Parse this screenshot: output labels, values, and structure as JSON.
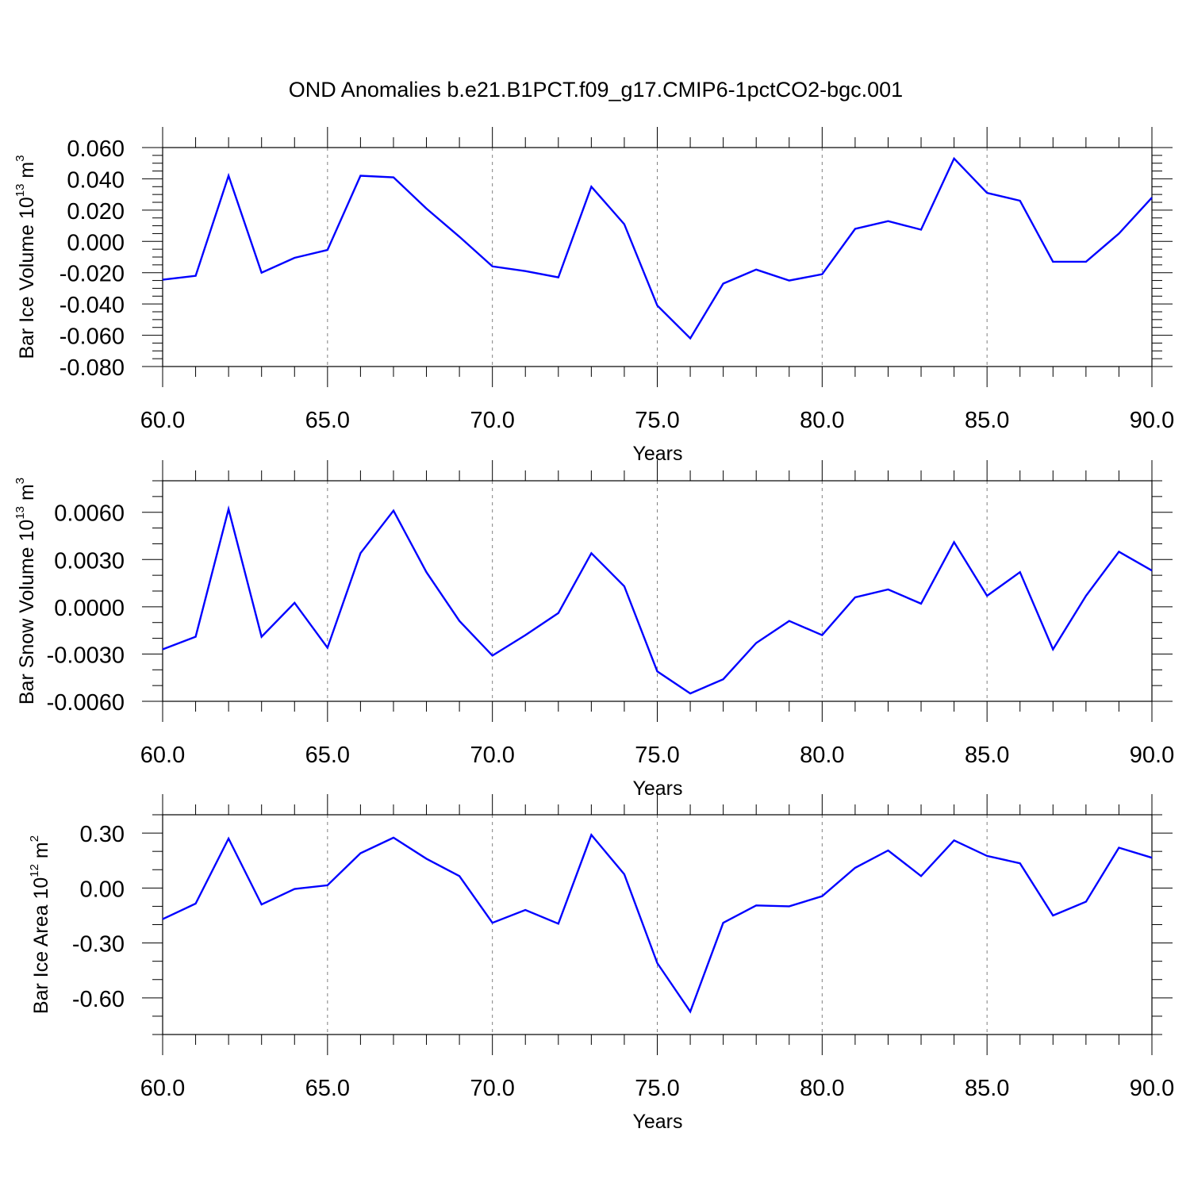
{
  "title": "OND Anomalies b.e21.B1PCT.f09_g17.CMIP6-1pctCO2-bgc.001",
  "colors": {
    "line": "#0000ff",
    "axis": "#000000",
    "grid": "#808080"
  },
  "panels": [
    {
      "ylabel_main": "Bar Ice Volume 10",
      "ylabel_exp": "13",
      "ylabel_unit": " m",
      "ylabel_unit_exp": "3",
      "xlabel": "Years",
      "xticks": [
        "60.0",
        "65.0",
        "70.0",
        "75.0",
        "80.0",
        "85.0",
        "90.0"
      ],
      "yticks": [
        "0.060",
        "0.040",
        "0.020",
        "0.000",
        "-0.020",
        "-0.040",
        "-0.060",
        "-0.080"
      ]
    },
    {
      "ylabel_main": "Bar Snow Volume 10",
      "ylabel_exp": "13",
      "ylabel_unit": " m",
      "ylabel_unit_exp": "3",
      "xlabel": "Years",
      "xticks": [
        "60.0",
        "65.0",
        "70.0",
        "75.0",
        "80.0",
        "85.0",
        "90.0"
      ],
      "yticks": [
        "0.0060",
        "0.0030",
        "0.0000",
        "-0.0030",
        "-0.0060"
      ]
    },
    {
      "ylabel_main": "Bar Ice Area 10",
      "ylabel_exp": "12",
      "ylabel_unit": " m",
      "ylabel_unit_exp": "2",
      "xlabel": "Years",
      "xticks": [
        "60.0",
        "65.0",
        "70.0",
        "75.0",
        "80.0",
        "85.0",
        "90.0"
      ],
      "yticks": [
        "0.30",
        "0.00",
        "-0.30",
        "-0.60"
      ]
    }
  ],
  "chart_data": [
    {
      "type": "line",
      "title": "OND Anomalies b.e21.B1PCT.f09_g17.CMIP6-1pctCO2-bgc.001",
      "xlabel": "Years",
      "ylabel": "Bar Ice Volume 10^13 m^3",
      "xlim": [
        60,
        90
      ],
      "ylim": [
        -0.08,
        0.06
      ],
      "grid": "vertical dashed at major x ticks",
      "x": [
        60,
        61,
        62,
        63,
        64,
        65,
        66,
        67,
        68,
        69,
        70,
        71,
        72,
        73,
        74,
        75,
        76,
        77,
        78,
        79,
        80,
        81,
        82,
        83,
        84,
        85,
        86,
        87,
        88,
        89,
        90
      ],
      "series": [
        {
          "values": [
            -0.0245,
            -0.022,
            0.042,
            -0.02,
            -0.0105,
            -0.0055,
            0.042,
            0.041,
            0.021,
            0.003,
            -0.016,
            -0.019,
            -0.023,
            0.035,
            0.011,
            -0.041,
            -0.062,
            -0.027,
            -0.018,
            -0.025,
            -0.021,
            0.008,
            0.013,
            0.0075,
            0.053,
            0.031,
            0.026,
            -0.013,
            -0.013,
            0.005,
            0.028
          ]
        }
      ]
    },
    {
      "type": "line",
      "xlabel": "Years",
      "ylabel": "Bar Snow Volume 10^13 m^3",
      "xlim": [
        60,
        90
      ],
      "ylim": [
        -0.006,
        0.008
      ],
      "grid": "vertical dashed at major x ticks",
      "x": [
        60,
        61,
        62,
        63,
        64,
        65,
        66,
        67,
        68,
        69,
        70,
        71,
        72,
        73,
        74,
        75,
        76,
        77,
        78,
        79,
        80,
        81,
        82,
        83,
        84,
        85,
        86,
        87,
        88,
        89,
        90
      ],
      "series": [
        {
          "values": [
            -0.0027,
            -0.0019,
            0.0062,
            -0.0019,
            0.00025,
            -0.0026,
            0.0034,
            0.0061,
            0.0022,
            -0.0009,
            -0.0031,
            -0.0018,
            -0.0004,
            0.0034,
            0.0013,
            -0.0041,
            -0.0055,
            -0.0046,
            -0.0023,
            -0.0009,
            -0.0018,
            0.0006,
            0.0011,
            0.0002,
            0.0041,
            0.0007,
            0.0022,
            -0.0027,
            0.0007,
            0.0035,
            0.0023
          ]
        }
      ]
    },
    {
      "type": "line",
      "xlabel": "Years",
      "ylabel": "Bar Ice Area 10^12 m^2",
      "xlim": [
        60,
        90
      ],
      "ylim": [
        -0.8,
        0.4
      ],
      "grid": "vertical dashed at major x ticks",
      "x": [
        60,
        61,
        62,
        63,
        64,
        65,
        66,
        67,
        68,
        69,
        70,
        71,
        72,
        73,
        74,
        75,
        76,
        77,
        78,
        79,
        80,
        81,
        82,
        83,
        84,
        85,
        86,
        87,
        88,
        89,
        90
      ],
      "series": [
        {
          "values": [
            -0.17,
            -0.085,
            0.27,
            -0.09,
            -0.005,
            0.015,
            0.19,
            0.275,
            0.16,
            0.065,
            -0.19,
            -0.12,
            -0.195,
            0.29,
            0.075,
            -0.41,
            -0.675,
            -0.19,
            -0.095,
            -0.1,
            -0.045,
            0.11,
            0.205,
            0.065,
            0.26,
            0.175,
            0.135,
            -0.15,
            -0.075,
            0.22,
            0.165
          ]
        }
      ]
    }
  ]
}
